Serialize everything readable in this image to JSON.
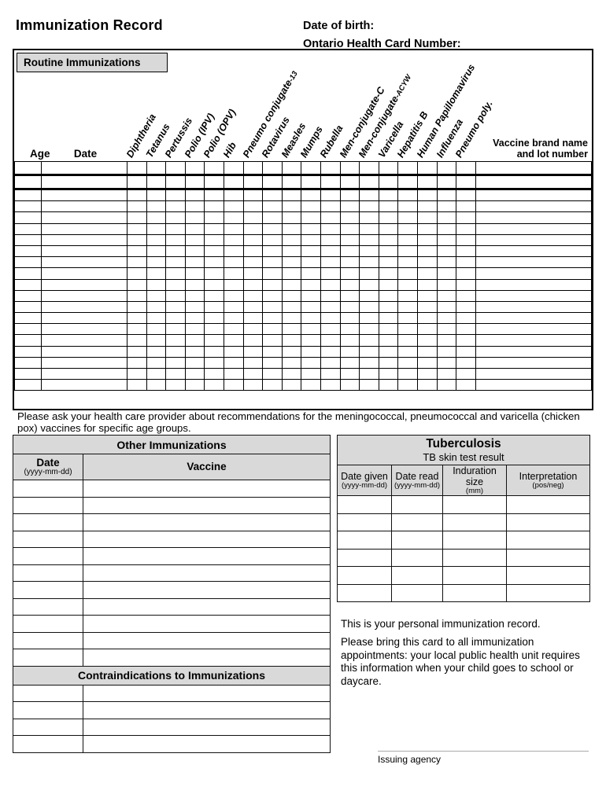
{
  "page": {
    "title": "Immunization Record",
    "dob_label": "Date of birth:",
    "ohc_label": "Ontario Health Card Number:"
  },
  "routine": {
    "section_title": "Routine Immunizations",
    "age_label": "Age",
    "date_label": "Date",
    "brand_label_line1": "Vaccine brand name",
    "brand_label_line2": "and lot number",
    "columns": [
      {
        "text": "Diphtheria",
        "small": ""
      },
      {
        "text": "Tetanus",
        "small": ""
      },
      {
        "text": "Pertussis",
        "small": ""
      },
      {
        "text": "Polio (IPV)",
        "small": ""
      },
      {
        "text": "Polio (OPV)",
        "small": ""
      },
      {
        "text": "Hib",
        "small": ""
      },
      {
        "text": "Pneumo conjugate",
        "small": "-13"
      },
      {
        "text": "Rotavirus",
        "small": ""
      },
      {
        "text": "Measles",
        "small": ""
      },
      {
        "text": "Mumps",
        "small": ""
      },
      {
        "text": "Rubella",
        "small": ""
      },
      {
        "text": "Men-conjugate-C",
        "small": ""
      },
      {
        "text": "Men-conjugate",
        "small": "-ACYW"
      },
      {
        "text": "Varicella",
        "small": ""
      },
      {
        "text": "Hepatitis B",
        "small": ""
      },
      {
        "text": "Human Papillomavirus",
        "small": ""
      },
      {
        "text": "Influenza",
        "small": ""
      },
      {
        "text": "Pneumo poly.",
        "small": ""
      }
    ],
    "row_count": 20,
    "thick_row_count": 2
  },
  "note": "Please ask your health care provider about recommendations for the meningococcal, pneumococcal and varicella (chicken pox) vaccines for specific age groups.",
  "other_immunizations": {
    "title": "Other Immunizations",
    "date_header": "Date",
    "date_sub": "(yyyy-mm-dd)",
    "vaccine_header": "Vaccine",
    "row_count": 11
  },
  "contraindications": {
    "title": "Contraindications to Immunizations",
    "row_count": 4
  },
  "tuberculosis": {
    "title": "Tuberculosis",
    "subtitle": "TB skin test result",
    "columns": [
      {
        "label": "Date given",
        "sub": "(yyyy-mm-dd)"
      },
      {
        "label": "Date read",
        "sub": "(yyyy-mm-dd)"
      },
      {
        "label": "Induration size",
        "sub": "(mm)"
      },
      {
        "label": "Interpretation",
        "sub": "(pos/neg)"
      }
    ],
    "row_count": 6
  },
  "footer": {
    "personal_note": "This is your personal immunization record.",
    "bring_note": "Please bring this card to all immunization appointments: your local public health unit requires this information when your child goes to school or daycare.",
    "issuing_agency": "Issuing agency"
  },
  "colors": {
    "header_fill": "#d9d9d9",
    "grid_line": "#000000",
    "light_divider": "#b5b5b5"
  }
}
